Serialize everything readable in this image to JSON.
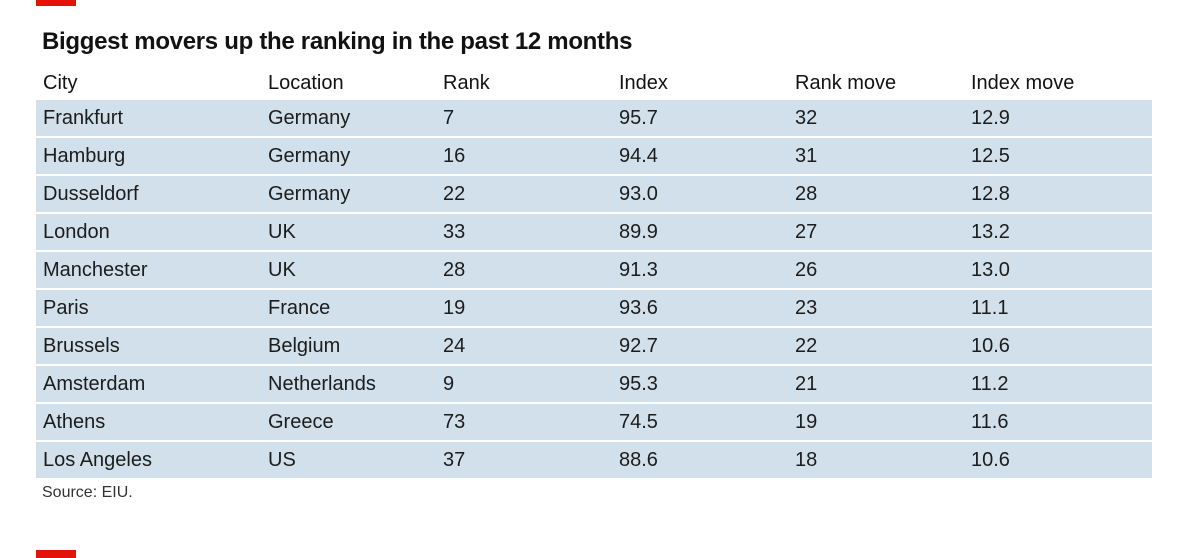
{
  "chart_data": {
    "type": "table",
    "title": "Biggest movers up the ranking in the past 12 months",
    "columns": [
      "City",
      "Location",
      "Rank",
      "Index",
      "Rank move",
      "Index move"
    ],
    "rows": [
      [
        "Frankfurt",
        "Germany",
        "7",
        "95.7",
        "32",
        "12.9"
      ],
      [
        "Hamburg",
        "Germany",
        "16",
        "94.4",
        "31",
        "12.5"
      ],
      [
        "Dusseldorf",
        "Germany",
        "22",
        "93.0",
        "28",
        "12.8"
      ],
      [
        "London",
        "UK",
        "33",
        "89.9",
        "27",
        "13.2"
      ],
      [
        "Manchester",
        "UK",
        "28",
        "91.3",
        "26",
        "13.0"
      ],
      [
        "Paris",
        "France",
        "19",
        "93.6",
        "23",
        "11.1"
      ],
      [
        "Brussels",
        "Belgium",
        "24",
        "92.7",
        "22",
        "10.6"
      ],
      [
        "Amsterdam",
        "Netherlands",
        "9",
        "95.3",
        "21",
        "11.2"
      ],
      [
        "Athens",
        "Greece",
        "73",
        "74.5",
        "19",
        "11.6"
      ],
      [
        "Los Angeles",
        "US",
        "37",
        "88.6",
        "18",
        "10.6"
      ]
    ],
    "source": "Source: EIU.",
    "colors": {
      "accent": "#e3120b",
      "row_fill": "#d1e0ea",
      "text": "#121212"
    }
  }
}
